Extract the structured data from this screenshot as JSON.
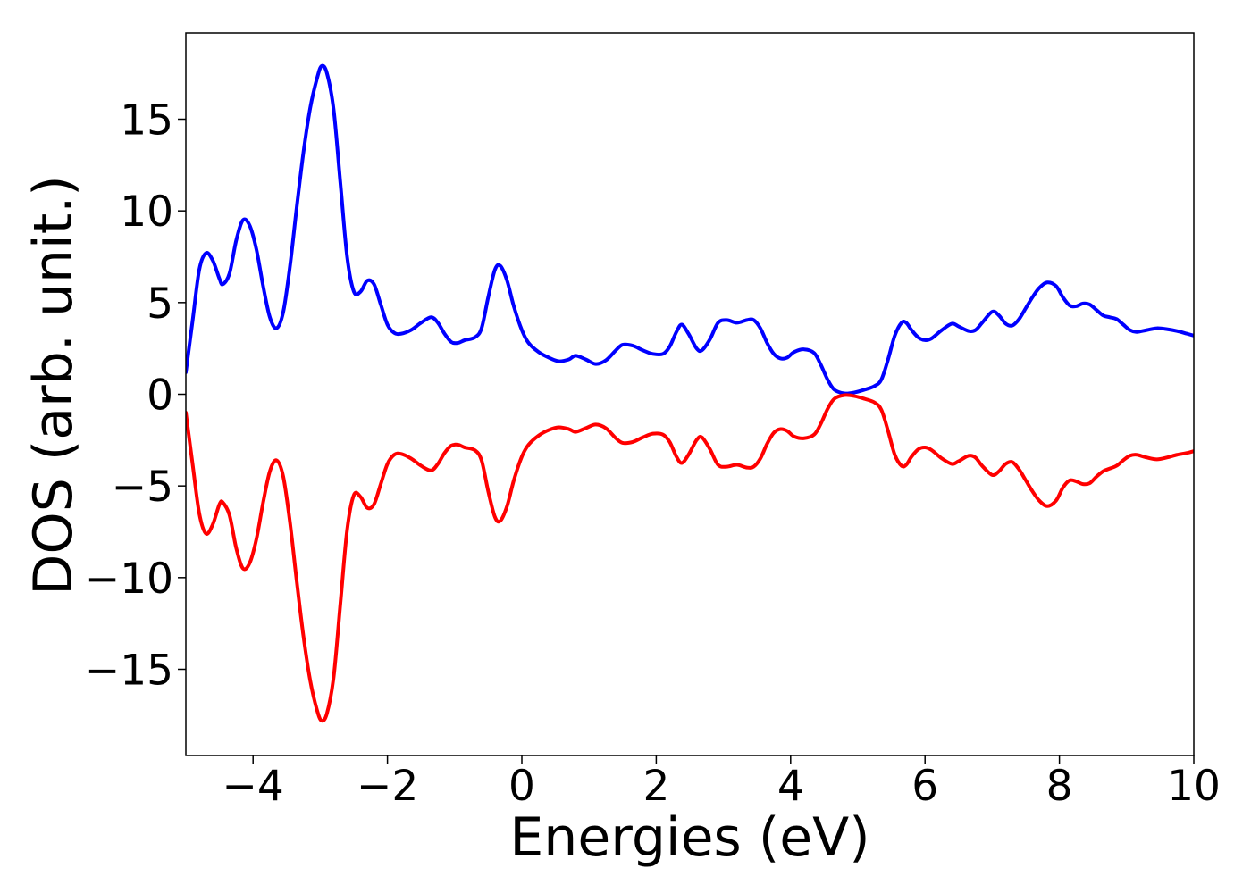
{
  "chart_data": {
    "type": "line",
    "title": "",
    "xlabel": "Energies (eV)",
    "ylabel": "DOS (arb. unit.)",
    "xlim": [
      -5,
      10
    ],
    "ylim": [
      -19.7,
      19.7
    ],
    "grid": false,
    "legend": "none",
    "x_ticks": [
      -4,
      -2,
      0,
      2,
      4,
      6,
      8,
      10
    ],
    "x_tick_labels": [
      "−4",
      "−2",
      "0",
      "2",
      "4",
      "6",
      "8",
      "10"
    ],
    "y_ticks": [
      15,
      10,
      5,
      0,
      -5,
      -10,
      -15
    ],
    "y_tick_labels": [
      "15",
      "10",
      "5",
      "0",
      "−5",
      "−10",
      "−15"
    ],
    "series": [
      {
        "color": "#0000ff",
        "points": [
          [
            -5.0,
            1.2
          ],
          [
            -4.9,
            4.0
          ],
          [
            -4.8,
            6.8
          ],
          [
            -4.7,
            7.7
          ],
          [
            -4.6,
            7.3
          ],
          [
            -4.5,
            6.3
          ],
          [
            -4.45,
            6.0
          ],
          [
            -4.35,
            6.6
          ],
          [
            -4.25,
            8.4
          ],
          [
            -4.15,
            9.5
          ],
          [
            -4.05,
            9.2
          ],
          [
            -3.95,
            7.9
          ],
          [
            -3.85,
            5.9
          ],
          [
            -3.75,
            4.2
          ],
          [
            -3.65,
            3.6
          ],
          [
            -3.55,
            4.5
          ],
          [
            -3.45,
            7.0
          ],
          [
            -3.35,
            10.2
          ],
          [
            -3.25,
            13.2
          ],
          [
            -3.15,
            15.6
          ],
          [
            -3.05,
            17.2
          ],
          [
            -2.98,
            17.9
          ],
          [
            -2.9,
            17.5
          ],
          [
            -2.8,
            15.5
          ],
          [
            -2.7,
            11.5
          ],
          [
            -2.6,
            7.5
          ],
          [
            -2.5,
            5.6
          ],
          [
            -2.4,
            5.6
          ],
          [
            -2.3,
            6.2
          ],
          [
            -2.2,
            6.0
          ],
          [
            -2.1,
            4.9
          ],
          [
            -2.0,
            3.8
          ],
          [
            -1.9,
            3.35
          ],
          [
            -1.8,
            3.3
          ],
          [
            -1.65,
            3.5
          ],
          [
            -1.5,
            3.9
          ],
          [
            -1.35,
            4.2
          ],
          [
            -1.25,
            3.9
          ],
          [
            -1.15,
            3.3
          ],
          [
            -1.05,
            2.85
          ],
          [
            -0.95,
            2.8
          ],
          [
            -0.85,
            2.95
          ],
          [
            -0.7,
            3.1
          ],
          [
            -0.6,
            3.6
          ],
          [
            -0.5,
            5.3
          ],
          [
            -0.4,
            6.8
          ],
          [
            -0.32,
            7.0
          ],
          [
            -0.22,
            6.2
          ],
          [
            -0.12,
            4.8
          ],
          [
            0.0,
            3.5
          ],
          [
            0.1,
            2.8
          ],
          [
            0.25,
            2.3
          ],
          [
            0.4,
            2.0
          ],
          [
            0.55,
            1.8
          ],
          [
            0.7,
            1.9
          ],
          [
            0.8,
            2.1
          ],
          [
            0.95,
            1.9
          ],
          [
            1.1,
            1.65
          ],
          [
            1.25,
            1.85
          ],
          [
            1.4,
            2.4
          ],
          [
            1.5,
            2.7
          ],
          [
            1.65,
            2.65
          ],
          [
            1.8,
            2.4
          ],
          [
            1.95,
            2.2
          ],
          [
            2.1,
            2.2
          ],
          [
            2.2,
            2.6
          ],
          [
            2.3,
            3.4
          ],
          [
            2.38,
            3.8
          ],
          [
            2.48,
            3.3
          ],
          [
            2.6,
            2.5
          ],
          [
            2.68,
            2.4
          ],
          [
            2.8,
            3.0
          ],
          [
            2.92,
            3.9
          ],
          [
            3.05,
            4.05
          ],
          [
            3.2,
            3.9
          ],
          [
            3.35,
            4.05
          ],
          [
            3.45,
            4.05
          ],
          [
            3.55,
            3.6
          ],
          [
            3.65,
            2.8
          ],
          [
            3.75,
            2.2
          ],
          [
            3.85,
            1.95
          ],
          [
            3.95,
            2.0
          ],
          [
            4.05,
            2.3
          ],
          [
            4.2,
            2.45
          ],
          [
            4.35,
            2.25
          ],
          [
            4.45,
            1.6
          ],
          [
            4.55,
            0.8
          ],
          [
            4.65,
            0.25
          ],
          [
            4.8,
            0.05
          ],
          [
            4.95,
            0.1
          ],
          [
            5.1,
            0.25
          ],
          [
            5.25,
            0.45
          ],
          [
            5.35,
            0.8
          ],
          [
            5.45,
            1.9
          ],
          [
            5.55,
            3.2
          ],
          [
            5.65,
            3.9
          ],
          [
            5.72,
            3.9
          ],
          [
            5.8,
            3.5
          ],
          [
            5.9,
            3.1
          ],
          [
            6.0,
            2.95
          ],
          [
            6.1,
            3.05
          ],
          [
            6.25,
            3.5
          ],
          [
            6.4,
            3.85
          ],
          [
            6.5,
            3.7
          ],
          [
            6.65,
            3.45
          ],
          [
            6.75,
            3.5
          ],
          [
            6.85,
            3.9
          ],
          [
            7.0,
            4.5
          ],
          [
            7.1,
            4.3
          ],
          [
            7.2,
            3.85
          ],
          [
            7.3,
            3.75
          ],
          [
            7.4,
            4.1
          ],
          [
            7.5,
            4.7
          ],
          [
            7.6,
            5.3
          ],
          [
            7.7,
            5.8
          ],
          [
            7.82,
            6.1
          ],
          [
            7.95,
            5.9
          ],
          [
            8.05,
            5.3
          ],
          [
            8.15,
            4.85
          ],
          [
            8.25,
            4.8
          ],
          [
            8.35,
            4.95
          ],
          [
            8.45,
            4.9
          ],
          [
            8.55,
            4.6
          ],
          [
            8.65,
            4.3
          ],
          [
            8.75,
            4.2
          ],
          [
            8.85,
            4.1
          ],
          [
            8.95,
            3.8
          ],
          [
            9.05,
            3.5
          ],
          [
            9.15,
            3.4
          ],
          [
            9.3,
            3.5
          ],
          [
            9.45,
            3.6
          ],
          [
            9.6,
            3.55
          ],
          [
            9.75,
            3.45
          ],
          [
            9.9,
            3.3
          ],
          [
            10.0,
            3.2
          ]
        ]
      },
      {
        "color": "#ff0000",
        "points": [
          [
            -5.0,
            -1.0
          ],
          [
            -4.9,
            -3.8
          ],
          [
            -4.8,
            -6.5
          ],
          [
            -4.7,
            -7.6
          ],
          [
            -4.6,
            -7.1
          ],
          [
            -4.5,
            -6.0
          ],
          [
            -4.45,
            -5.9
          ],
          [
            -4.35,
            -6.6
          ],
          [
            -4.25,
            -8.4
          ],
          [
            -4.15,
            -9.5
          ],
          [
            -4.05,
            -9.2
          ],
          [
            -3.95,
            -7.9
          ],
          [
            -3.85,
            -5.9
          ],
          [
            -3.75,
            -4.2
          ],
          [
            -3.65,
            -3.6
          ],
          [
            -3.55,
            -4.5
          ],
          [
            -3.45,
            -7.0
          ],
          [
            -3.35,
            -10.2
          ],
          [
            -3.25,
            -13.2
          ],
          [
            -3.15,
            -15.6
          ],
          [
            -3.05,
            -17.2
          ],
          [
            -2.98,
            -17.8
          ],
          [
            -2.9,
            -17.4
          ],
          [
            -2.8,
            -15.4
          ],
          [
            -2.7,
            -11.4
          ],
          [
            -2.6,
            -7.4
          ],
          [
            -2.5,
            -5.5
          ],
          [
            -2.4,
            -5.6
          ],
          [
            -2.3,
            -6.2
          ],
          [
            -2.2,
            -6.0
          ],
          [
            -2.1,
            -4.9
          ],
          [
            -2.0,
            -3.8
          ],
          [
            -1.9,
            -3.3
          ],
          [
            -1.8,
            -3.25
          ],
          [
            -1.65,
            -3.5
          ],
          [
            -1.5,
            -3.9
          ],
          [
            -1.35,
            -4.15
          ],
          [
            -1.25,
            -3.8
          ],
          [
            -1.15,
            -3.2
          ],
          [
            -1.05,
            -2.8
          ],
          [
            -0.95,
            -2.75
          ],
          [
            -0.85,
            -2.9
          ],
          [
            -0.7,
            -3.05
          ],
          [
            -0.6,
            -3.6
          ],
          [
            -0.5,
            -5.3
          ],
          [
            -0.4,
            -6.7
          ],
          [
            -0.32,
            -6.9
          ],
          [
            -0.22,
            -6.1
          ],
          [
            -0.12,
            -4.7
          ],
          [
            0.0,
            -3.4
          ],
          [
            0.1,
            -2.75
          ],
          [
            0.25,
            -2.25
          ],
          [
            0.4,
            -1.95
          ],
          [
            0.55,
            -1.8
          ],
          [
            0.7,
            -1.9
          ],
          [
            0.8,
            -2.05
          ],
          [
            0.95,
            -1.85
          ],
          [
            1.1,
            -1.65
          ],
          [
            1.25,
            -1.85
          ],
          [
            1.4,
            -2.4
          ],
          [
            1.5,
            -2.65
          ],
          [
            1.65,
            -2.6
          ],
          [
            1.8,
            -2.35
          ],
          [
            1.95,
            -2.15
          ],
          [
            2.1,
            -2.2
          ],
          [
            2.2,
            -2.6
          ],
          [
            2.3,
            -3.4
          ],
          [
            2.38,
            -3.75
          ],
          [
            2.48,
            -3.3
          ],
          [
            2.6,
            -2.5
          ],
          [
            2.68,
            -2.35
          ],
          [
            2.8,
            -3.0
          ],
          [
            2.92,
            -3.85
          ],
          [
            3.05,
            -3.95
          ],
          [
            3.2,
            -3.85
          ],
          [
            3.35,
            -4.0
          ],
          [
            3.45,
            -3.95
          ],
          [
            3.55,
            -3.5
          ],
          [
            3.65,
            -2.7
          ],
          [
            3.75,
            -2.1
          ],
          [
            3.85,
            -1.9
          ],
          [
            3.95,
            -2.0
          ],
          [
            4.05,
            -2.3
          ],
          [
            4.2,
            -2.4
          ],
          [
            4.35,
            -2.2
          ],
          [
            4.45,
            -1.6
          ],
          [
            4.55,
            -0.8
          ],
          [
            4.65,
            -0.25
          ],
          [
            4.8,
            -0.05
          ],
          [
            4.95,
            -0.1
          ],
          [
            5.1,
            -0.25
          ],
          [
            5.25,
            -0.45
          ],
          [
            5.35,
            -0.85
          ],
          [
            5.45,
            -2.0
          ],
          [
            5.55,
            -3.3
          ],
          [
            5.65,
            -3.9
          ],
          [
            5.72,
            -3.85
          ],
          [
            5.8,
            -3.4
          ],
          [
            5.9,
            -3.0
          ],
          [
            6.0,
            -2.9
          ],
          [
            6.1,
            -3.05
          ],
          [
            6.25,
            -3.5
          ],
          [
            6.4,
            -3.8
          ],
          [
            6.5,
            -3.65
          ],
          [
            6.65,
            -3.35
          ],
          [
            6.75,
            -3.45
          ],
          [
            6.85,
            -3.9
          ],
          [
            7.0,
            -4.4
          ],
          [
            7.1,
            -4.2
          ],
          [
            7.2,
            -3.8
          ],
          [
            7.3,
            -3.7
          ],
          [
            7.4,
            -4.1
          ],
          [
            7.5,
            -4.7
          ],
          [
            7.6,
            -5.3
          ],
          [
            7.7,
            -5.8
          ],
          [
            7.82,
            -6.1
          ],
          [
            7.95,
            -5.8
          ],
          [
            8.05,
            -5.1
          ],
          [
            8.15,
            -4.7
          ],
          [
            8.25,
            -4.75
          ],
          [
            8.35,
            -4.9
          ],
          [
            8.45,
            -4.85
          ],
          [
            8.55,
            -4.5
          ],
          [
            8.65,
            -4.2
          ],
          [
            8.75,
            -4.05
          ],
          [
            8.85,
            -3.9
          ],
          [
            8.95,
            -3.6
          ],
          [
            9.05,
            -3.35
          ],
          [
            9.15,
            -3.3
          ],
          [
            9.3,
            -3.45
          ],
          [
            9.45,
            -3.55
          ],
          [
            9.6,
            -3.45
          ],
          [
            9.75,
            -3.3
          ],
          [
            9.9,
            -3.2
          ],
          [
            10.0,
            -3.1
          ]
        ]
      }
    ]
  }
}
